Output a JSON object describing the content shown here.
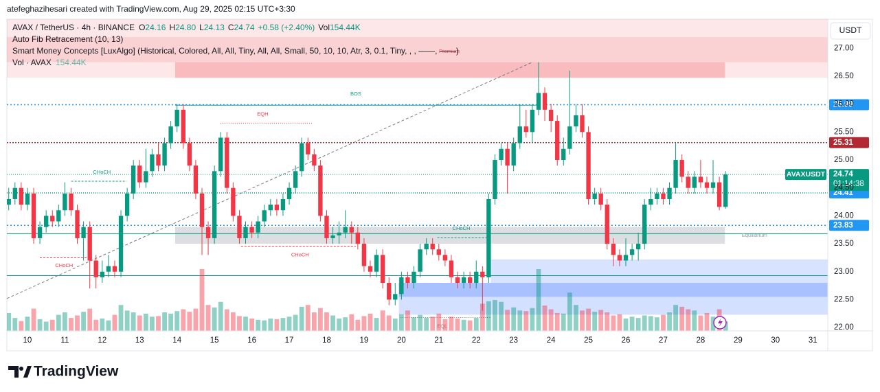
{
  "header": "atefeghazihesari created with TradingView.com, Aug 29, 2025 02:15 UTC+3:30",
  "currency_button": "USDT",
  "footer": "TradingView",
  "chart_data": {
    "type": "candlestick",
    "legend": {
      "symbol": "AVAX / TetherUS · 4h · BINANCE",
      "fields": [
        {
          "key": "O",
          "value": "24.16"
        },
        {
          "key": "H",
          "value": "24.80"
        },
        {
          "key": "L",
          "value": "24.13"
        },
        {
          "key": "C",
          "value": "24.74"
        }
      ],
      "change": "+0.58 (+2.40%)",
      "vol_key": "Vol",
      "vol": "154.44K"
    },
    "indicators": [
      "Auto Fib Retracement (10, 13)",
      "Smart Money Concepts [LuxAlgo] (Historical, Colored, All, All, Tiny, All, All, Small, 50, 10, 10, Atr, 3, 0.1, Tiny, , , ——, ——)"
    ],
    "volume_legend": {
      "name": "Vol · AVAX",
      "value": "154.44K"
    },
    "up_color": "#089981",
    "down_color": "#f23645",
    "xlim": [
      9.45,
      31.4
    ],
    "xticks": [
      10,
      11,
      12,
      13,
      14,
      15,
      16,
      17,
      18,
      19,
      20,
      21,
      22,
      23,
      24,
      25,
      26,
      27,
      28,
      29,
      30,
      31
    ],
    "ylim": [
      21.94,
      27.52
    ],
    "yticks": [
      {
        "value": 22,
        "label": "22.00"
      },
      {
        "value": 22.5,
        "label": "22.50"
      },
      {
        "value": 23,
        "label": "23.00"
      },
      {
        "value": 23.5,
        "label": "23.50"
      },
      {
        "value": 24,
        "label": "24.00"
      },
      {
        "value": 24.5,
        "label": "24.50"
      },
      {
        "value": 25,
        "label": "25.00"
      },
      {
        "value": 25.5,
        "label": "25.50"
      },
      {
        "value": 26,
        "label": "26.00"
      },
      {
        "value": 26.5,
        "label": "26.50"
      },
      {
        "value": 27,
        "label": "27.00"
      }
    ],
    "grid": false,
    "x": [
      9.5,
      9.667,
      9.833,
      10,
      10.167,
      10.333,
      10.5,
      10.667,
      10.833,
      11,
      11.167,
      11.333,
      11.5,
      11.667,
      11.833,
      12,
      12.167,
      12.333,
      12.5,
      12.667,
      12.833,
      13,
      13.167,
      13.333,
      13.5,
      13.667,
      13.833,
      14,
      14.167,
      14.333,
      14.5,
      14.667,
      14.833,
      15,
      15.167,
      15.333,
      15.5,
      15.667,
      15.833,
      16,
      16.167,
      16.333,
      16.5,
      16.667,
      16.833,
      17,
      17.167,
      17.333,
      17.5,
      17.667,
      17.833,
      18,
      18.167,
      18.333,
      18.5,
      18.667,
      18.833,
      19,
      19.167,
      19.333,
      19.5,
      19.667,
      19.833,
      20,
      20.167,
      20.333,
      20.5,
      20.667,
      20.833,
      21,
      21.167,
      21.333,
      21.5,
      21.667,
      21.833,
      22,
      22.167,
      22.333,
      22.5,
      22.667,
      22.833,
      23,
      23.167,
      23.333,
      23.5,
      23.667,
      23.833,
      24,
      24.167,
      24.333,
      24.5,
      24.667,
      24.833,
      25,
      25.167,
      25.333,
      25.5,
      25.667,
      25.833,
      26,
      26.167,
      26.333,
      26.5,
      26.667,
      26.833,
      27,
      27.167,
      27.333,
      27.5,
      27.667,
      27.833,
      28,
      28.167,
      28.333,
      28.5,
      28.667
    ],
    "candles": [
      [
        24.2,
        24.5,
        24.1,
        24.3
      ],
      [
        24.3,
        24.6,
        24.2,
        24.5
      ],
      [
        24.5,
        24.6,
        24.1,
        24.2
      ],
      [
        24.2,
        24.5,
        24.1,
        24.4
      ],
      [
        24.4,
        24.5,
        23.5,
        23.6
      ],
      [
        23.6,
        23.9,
        23.5,
        23.8
      ],
      [
        23.8,
        24.1,
        23.7,
        24.0
      ],
      [
        24.0,
        24.1,
        23.8,
        23.9
      ],
      [
        23.9,
        24.2,
        23.8,
        24.1
      ],
      [
        24.1,
        24.6,
        24.0,
        24.4
      ],
      [
        24.4,
        24.5,
        24.0,
        24.1
      ],
      [
        24.1,
        24.2,
        23.5,
        23.6
      ],
      [
        23.6,
        23.9,
        23.2,
        23.8
      ],
      [
        23.8,
        23.9,
        22.7,
        23.2
      ],
      [
        23.2,
        23.3,
        22.7,
        22.9
      ],
      [
        22.9,
        23.2,
        22.8,
        23.0
      ],
      [
        23.0,
        23.3,
        22.9,
        23.1
      ],
      [
        23.1,
        23.2,
        22.9,
        23.0
      ],
      [
        23.0,
        24.1,
        22.9,
        24.0
      ],
      [
        24.0,
        24.5,
        23.9,
        24.4
      ],
      [
        24.4,
        25.0,
        24.3,
        24.9
      ],
      [
        24.9,
        25.0,
        24.5,
        24.6
      ],
      [
        24.6,
        25.2,
        24.5,
        24.8
      ],
      [
        24.8,
        25.2,
        24.7,
        25.1
      ],
      [
        25.1,
        25.3,
        24.8,
        24.9
      ],
      [
        24.9,
        25.4,
        24.8,
        25.3
      ],
      [
        25.3,
        25.7,
        25.2,
        25.6
      ],
      [
        25.6,
        26.0,
        25.5,
        25.9
      ],
      [
        25.9,
        26.0,
        25.2,
        25.3
      ],
      [
        25.3,
        25.4,
        24.8,
        24.9
      ],
      [
        24.9,
        25.0,
        24.3,
        24.4
      ],
      [
        24.4,
        24.5,
        23.3,
        23.8
      ],
      [
        23.8,
        23.9,
        23.3,
        23.6
      ],
      [
        23.6,
        24.9,
        23.5,
        24.8
      ],
      [
        24.8,
        25.5,
        24.7,
        25.4
      ],
      [
        25.4,
        25.5,
        24.4,
        24.5
      ],
      [
        24.5,
        24.6,
        23.9,
        24.0
      ],
      [
        24.0,
        24.1,
        23.5,
        23.6
      ],
      [
        23.6,
        23.9,
        23.5,
        23.8
      ],
      [
        23.8,
        23.9,
        23.6,
        23.7
      ],
      [
        23.7,
        24.0,
        23.6,
        23.9
      ],
      [
        23.9,
        24.2,
        23.8,
        24.1
      ],
      [
        24.1,
        24.3,
        24.0,
        24.2
      ],
      [
        24.2,
        24.3,
        24.0,
        24.1
      ],
      [
        24.1,
        24.4,
        24.0,
        24.3
      ],
      [
        24.3,
        24.6,
        24.2,
        24.5
      ],
      [
        24.5,
        24.9,
        24.4,
        24.8
      ],
      [
        24.8,
        25.4,
        24.7,
        25.3
      ],
      [
        25.3,
        25.4,
        25.0,
        25.1
      ],
      [
        25.1,
        25.2,
        24.8,
        24.9
      ],
      [
        24.9,
        25.0,
        23.9,
        24.0
      ],
      [
        24.0,
        24.1,
        23.5,
        23.6
      ],
      [
        23.6,
        23.8,
        23.5,
        23.65
      ],
      [
        23.65,
        23.9,
        23.5,
        23.7
      ],
      [
        23.7,
        24.1,
        23.6,
        23.8
      ],
      [
        23.8,
        23.9,
        23.5,
        23.7
      ],
      [
        23.7,
        23.8,
        23.4,
        23.5
      ],
      [
        23.5,
        23.6,
        23.0,
        23.1
      ],
      [
        23.1,
        23.2,
        22.9,
        23.0
      ],
      [
        23.0,
        23.4,
        22.9,
        23.3
      ],
      [
        23.3,
        23.4,
        22.7,
        22.8
      ],
      [
        22.8,
        22.9,
        22.4,
        22.5
      ],
      [
        22.5,
        22.8,
        22.4,
        22.6
      ],
      [
        22.6,
        23.0,
        22.5,
        22.9
      ],
      [
        22.9,
        23.0,
        22.7,
        22.8
      ],
      [
        22.8,
        23.1,
        22.7,
        23.0
      ],
      [
        23.0,
        23.5,
        22.9,
        23.4
      ],
      [
        23.4,
        23.6,
        23.3,
        23.5
      ],
      [
        23.5,
        23.6,
        23.3,
        23.4
      ],
      [
        23.4,
        23.5,
        23.2,
        23.3
      ],
      [
        23.3,
        23.4,
        23.1,
        23.2
      ],
      [
        23.2,
        23.3,
        22.8,
        22.9
      ],
      [
        22.9,
        23.0,
        22.7,
        22.8
      ],
      [
        22.8,
        23.0,
        22.7,
        22.9
      ],
      [
        22.9,
        23.0,
        22.7,
        22.8
      ],
      [
        22.8,
        23.2,
        22.7,
        23.0
      ],
      [
        23.0,
        23.1,
        22.3,
        22.9
      ],
      [
        22.9,
        24.4,
        22.8,
        24.3
      ],
      [
        24.3,
        25.1,
        24.2,
        25.0
      ],
      [
        25.0,
        25.3,
        24.9,
        25.2
      ],
      [
        25.2,
        25.3,
        24.4,
        24.9
      ],
      [
        24.9,
        25.4,
        24.8,
        25.3
      ],
      [
        25.3,
        26.0,
        25.2,
        25.6
      ],
      [
        25.6,
        25.9,
        25.4,
        25.5
      ],
      [
        25.5,
        26.0,
        25.3,
        25.9
      ],
      [
        25.9,
        26.75,
        25.8,
        26.2
      ],
      [
        26.2,
        26.3,
        25.7,
        25.9
      ],
      [
        25.9,
        26.0,
        25.5,
        25.7
      ],
      [
        25.7,
        25.8,
        24.9,
        25.0
      ],
      [
        25.0,
        25.4,
        24.9,
        25.2
      ],
      [
        25.2,
        26.6,
        25.1,
        25.6
      ],
      [
        25.6,
        26.0,
        25.5,
        25.8
      ],
      [
        25.8,
        26.0,
        25.4,
        25.5
      ],
      [
        25.5,
        25.6,
        24.2,
        24.3
      ],
      [
        24.3,
        24.5,
        24.2,
        24.4
      ],
      [
        24.4,
        24.5,
        24.1,
        24.2
      ],
      [
        24.2,
        24.3,
        23.4,
        23.5
      ],
      [
        23.5,
        23.6,
        23.1,
        23.3
      ],
      [
        23.3,
        23.4,
        23.1,
        23.2
      ],
      [
        23.2,
        23.6,
        23.1,
        23.3
      ],
      [
        23.3,
        23.5,
        23.2,
        23.4
      ],
      [
        23.4,
        23.7,
        23.2,
        23.5
      ],
      [
        23.5,
        24.3,
        23.4,
        24.2
      ],
      [
        24.2,
        24.5,
        24.1,
        24.3
      ],
      [
        24.3,
        24.5,
        24.2,
        24.4
      ],
      [
        24.4,
        24.5,
        24.2,
        24.3
      ],
      [
        24.3,
        24.6,
        24.2,
        24.5
      ],
      [
        24.5,
        25.3,
        24.4,
        25.0
      ],
      [
        25.0,
        25.1,
        24.6,
        24.7
      ],
      [
        24.7,
        24.8,
        24.4,
        24.5
      ],
      [
        24.5,
        24.8,
        24.4,
        24.7
      ],
      [
        24.7,
        25.0,
        24.5,
        24.6
      ],
      [
        24.6,
        24.7,
        24.4,
        24.5
      ],
      [
        24.5,
        25.0,
        24.4,
        24.6
      ],
      [
        24.6,
        24.7,
        24.1,
        24.16
      ],
      [
        24.16,
        24.8,
        24.13,
        24.74
      ]
    ],
    "volume": [
      290,
      210,
      160,
      230,
      360,
      190,
      150,
      180,
      260,
      300,
      210,
      250,
      310,
      360,
      180,
      200,
      170,
      260,
      420,
      330,
      300,
      250,
      280,
      230,
      240,
      300,
      280,
      320,
      350,
      310,
      360,
      1000,
      420,
      380,
      470,
      350,
      300,
      240,
      230,
      200,
      180,
      170,
      200,
      190,
      210,
      230,
      260,
      390,
      420,
      300,
      370,
      300,
      250,
      200,
      220,
      270,
      180,
      240,
      280,
      210,
      330,
      250,
      200,
      270,
      330,
      220,
      260,
      210,
      230,
      280,
      190,
      230,
      200,
      180,
      170,
      210,
      440,
      480,
      500,
      470,
      340,
      380,
      330,
      320,
      370,
      1000,
      410,
      350,
      290,
      280,
      620,
      420,
      330,
      360,
      310,
      340,
      300,
      250,
      270,
      200,
      230,
      210,
      250,
      240,
      220,
      260,
      300,
      420,
      390,
      350,
      330,
      250,
      290,
      230,
      350,
      154.44
    ],
    "zones": [
      {
        "y": [
          26.47,
          27.52
        ],
        "color": "rgba(242,54,69,0.12)"
      },
      {
        "y": [
          26.75,
          27.2
        ],
        "color": "rgba(242,54,69,0.12)"
      },
      {
        "x": [
          13.95,
          28.65
        ],
        "y": [
          26.47,
          26.75
        ],
        "color": "rgba(242,54,69,0.25)"
      },
      {
        "x": [
          13.95,
          28.65
        ],
        "y": [
          23.5,
          23.8
        ],
        "color": "rgba(120,123,134,0.25)"
      },
      {
        "x": [
          22.39,
          31.4
        ],
        "y": [
          22.8,
          23.22
        ],
        "color": "rgba(41,98,255,0.18)"
      },
      {
        "x": [
          19.93,
          31.4
        ],
        "y": [
          22.23,
          22.8
        ],
        "color": "rgba(41,98,255,0.2)"
      },
      {
        "x": [
          19.93,
          31.4
        ],
        "y": [
          22.55,
          22.8
        ],
        "color": "rgba(41,98,255,0.25)"
      }
    ],
    "lines": [
      {
        "x": [
          9.45,
          23.5
        ],
        "y": [
          22.52,
          26.75
        ],
        "color": "#787b86",
        "dash": "4 3"
      },
      {
        "y": [
          23.68,
          23.68
        ],
        "color": "#089981",
        "dash": "none"
      },
      {
        "y": [
          22.93,
          22.93
        ],
        "color": "#089981",
        "dash": "none"
      },
      {
        "x": [
          13.95,
          23.6
        ],
        "y": [
          25.98,
          25.98
        ],
        "color": "#089981",
        "dash": "none"
      },
      {
        "x": [
          15.16,
          17.63
        ],
        "y": [
          25.66,
          25.66
        ],
        "color": "#f23645",
        "dash": "1 2"
      },
      {
        "x": [
          11.17,
          12.65
        ],
        "y": [
          24.62,
          24.62
        ],
        "color": "#089981",
        "dash": "3 2"
      },
      {
        "x": [
          10.33,
          11.73
        ],
        "y": [
          23.25,
          23.25
        ],
        "color": "#f23645",
        "dash": "3 2"
      },
      {
        "x": [
          15.71,
          18.78
        ],
        "y": [
          23.45,
          23.45
        ],
        "color": "#f23645",
        "dash": "3 2"
      },
      {
        "x": [
          20.96,
          22.39
        ],
        "y": [
          23.61,
          23.61
        ],
        "color": "#089981",
        "dash": "3 2"
      },
      {
        "x": [
          19.98,
          22.39
        ],
        "y": [
          22.18,
          22.18
        ],
        "color": "#787b86",
        "dash": "1 2"
      }
    ],
    "annotations": [
      {
        "text": "BOS",
        "x": 18.78,
        "y": 26.18,
        "color": "#089981"
      },
      {
        "text": "EQH",
        "x": 16.29,
        "y": 25.82,
        "color": "#f23645"
      },
      {
        "text": "CHoCH",
        "x": 11.99,
        "y": 24.78,
        "color": "#089981"
      },
      {
        "text": "CHoCH",
        "x": 10.98,
        "y": 23.11,
        "color": "#f23645"
      },
      {
        "text": "CHoCH",
        "x": 17.29,
        "y": 23.3,
        "color": "#f23645"
      },
      {
        "text": "CHoCH",
        "x": 21.6,
        "y": 23.77,
        "color": "#089981"
      },
      {
        "text": "Premium",
        "x": 21.28,
        "y": 26.94,
        "color": "#f23645"
      },
      {
        "text": "Equilibrium",
        "x": 29.44,
        "y": 23.65,
        "color": "#9598a1"
      },
      {
        "text": "EQL",
        "x": 21.09,
        "y": 22.02,
        "color": "#9598a1"
      }
    ],
    "levels": [
      {
        "value": 25.99,
        "line_color": "#2196f3",
        "tag_color": "#2196f3",
        "dash": "2 3"
      },
      {
        "value": 25.31,
        "line_color": "#b22833",
        "tag_color": "#b22833",
        "dash": "2 2"
      },
      {
        "value": 24.41,
        "line_color": "#089981",
        "tag_color": "#2196f3",
        "dash": "1 2"
      },
      {
        "value": 23.83,
        "line_color": "#2196f3",
        "tag_color": "#2196f3",
        "dash": "2 3"
      }
    ],
    "price_tag": {
      "symbol": "AVAXUSDT",
      "countdown": "01:14:38",
      "color": "#089981"
    }
  }
}
